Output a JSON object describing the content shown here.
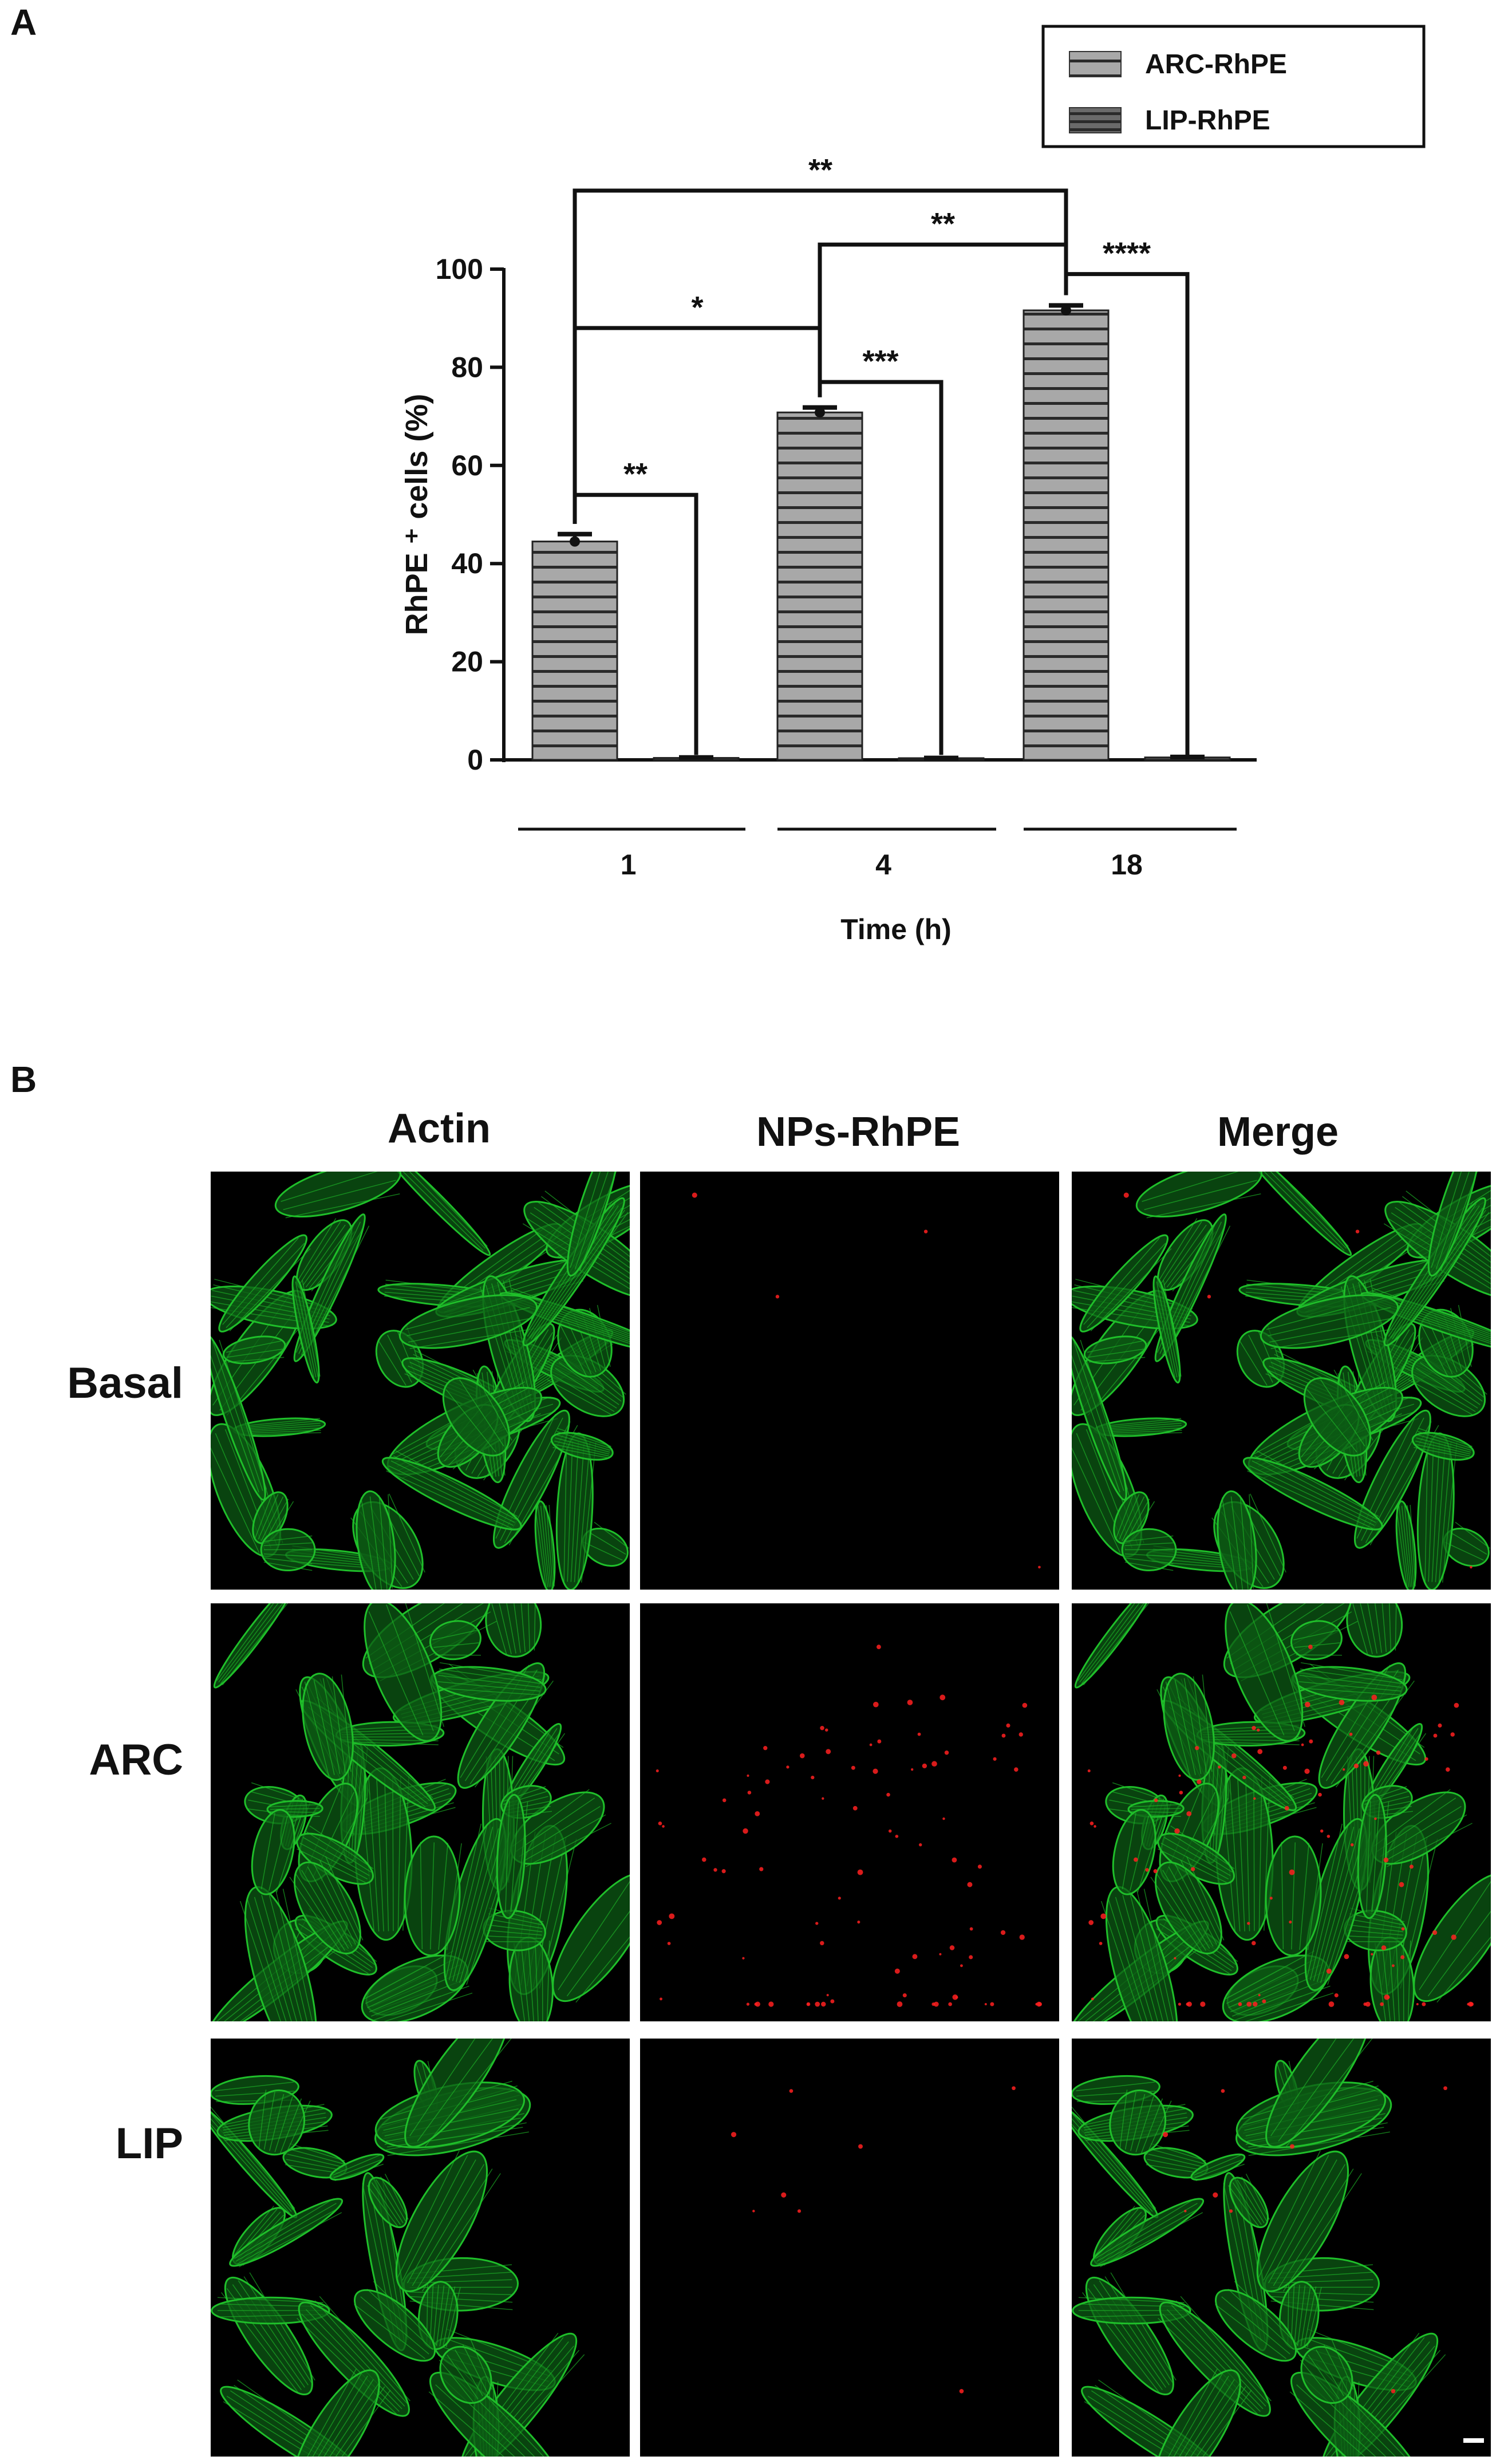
{
  "panel_a_label": "A",
  "panel_b_label": "B",
  "chart_data": {
    "type": "bar",
    "categories": [
      "1",
      "4",
      "18"
    ],
    "series": [
      {
        "name": "ARC-RhPE",
        "values": [
          44.5,
          70.8,
          91.6
        ],
        "errors": [
          1.5,
          1.0,
          1.0
        ],
        "color": "#a8a8a8",
        "pattern": "horizontal-stripes-light"
      },
      {
        "name": "LIP-RhPE",
        "values": [
          0.4,
          0.3,
          0.5
        ],
        "errors": [
          0.1,
          0.1,
          0.1
        ],
        "color": "#555555",
        "pattern": "horizontal-stripes-dark"
      }
    ],
    "xlabel": "Time (h)",
    "ylabel": "RhPE ⁺ cells (%)",
    "ylim": [
      0,
      100
    ],
    "yticks": [
      0,
      20,
      40,
      60,
      80,
      100
    ],
    "legend_position": "top-right",
    "grid": false,
    "significance": [
      {
        "from": "1-ARC",
        "to": "1-LIP",
        "label": "**"
      },
      {
        "from": "4-ARC",
        "to": "4-LIP",
        "label": "***"
      },
      {
        "from": "18-ARC",
        "to": "18-LIP",
        "label": "****"
      },
      {
        "from": "1-ARC",
        "to": "4-ARC",
        "label": "*"
      },
      {
        "from": "4-ARC",
        "to": "18-ARC",
        "label": "**"
      },
      {
        "from": "1-ARC",
        "to": "18-ARC",
        "label": "**"
      }
    ]
  },
  "micrographs": {
    "columns": [
      "Actin",
      "NPs-RhPE",
      "Merge"
    ],
    "rows": [
      "Basal",
      "ARC",
      "LIP"
    ],
    "colors": {
      "actin": "#1fbf2a",
      "nps": "#ff2020",
      "background": "#000000"
    }
  }
}
